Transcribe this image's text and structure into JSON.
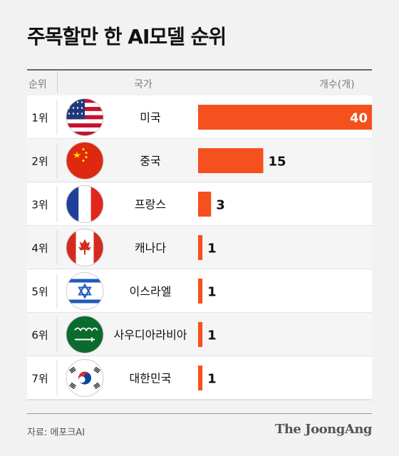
{
  "title": "주목할만 한 AI모델 순위",
  "headers": {
    "rank": "순위",
    "country": "국가",
    "count": "개수(개)"
  },
  "source": "자료: 에포크AI",
  "brand": "The JoongAng",
  "colors": {
    "bar": "#f5501e",
    "text": "#111111"
  },
  "chart_data": {
    "type": "bar",
    "orientation": "horizontal",
    "title": "주목할만 한 AI모델 순위",
    "ylabel": "개수(개)",
    "categories": [
      "미국",
      "중국",
      "프랑스",
      "캐나다",
      "이스라엘",
      "사우디아라비아",
      "대한민국"
    ],
    "ranks": [
      "1위",
      "2위",
      "3위",
      "4위",
      "5위",
      "6위",
      "7위"
    ],
    "flags": [
      "us-flag-icon",
      "china-flag-icon",
      "france-flag-icon",
      "canada-flag-icon",
      "israel-flag-icon",
      "saudi-arabia-flag-icon",
      "korea-flag-icon"
    ],
    "values": [
      40,
      15,
      3,
      1,
      1,
      1,
      1
    ],
    "xlim": [
      0,
      40
    ],
    "grid": false,
    "legend": "none"
  }
}
